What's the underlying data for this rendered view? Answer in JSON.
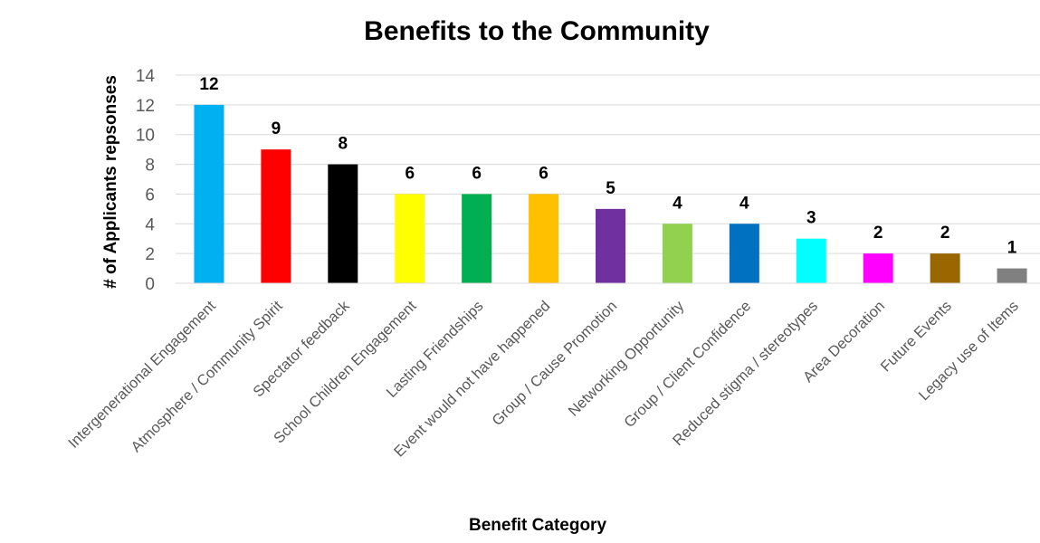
{
  "chart_data": {
    "type": "bar",
    "title": "Benefits to the Community",
    "xlabel": "Benefit Category",
    "ylabel": "# of Applicants repsonses",
    "ylim": [
      0,
      14
    ],
    "yticks": [
      0,
      2,
      4,
      6,
      8,
      10,
      12,
      14
    ],
    "grid": true,
    "legend": "none",
    "categories": [
      "Intergenerational Engagement",
      "Atmosphere / Community Spirit",
      "Spectator feedback",
      "School Children Engagement",
      "Lasting Friendships",
      "Event would not have happened",
      "Group / Cause Promotion",
      "Networking Opportunity",
      "Group / Client Confidence",
      "Reduced stigma / stereotypes",
      "Area Decoration",
      "Future Events",
      "Legacy use of Items"
    ],
    "values": [
      12,
      9,
      8,
      6,
      6,
      6,
      5,
      4,
      4,
      3,
      2,
      2,
      1
    ],
    "colors": [
      "#00B0F0",
      "#FF0000",
      "#000000",
      "#FFFF00",
      "#00B050",
      "#FFC000",
      "#7030A0",
      "#92D050",
      "#0070C0",
      "#00FFFF",
      "#FF00FF",
      "#996600",
      "#808080"
    ]
  }
}
